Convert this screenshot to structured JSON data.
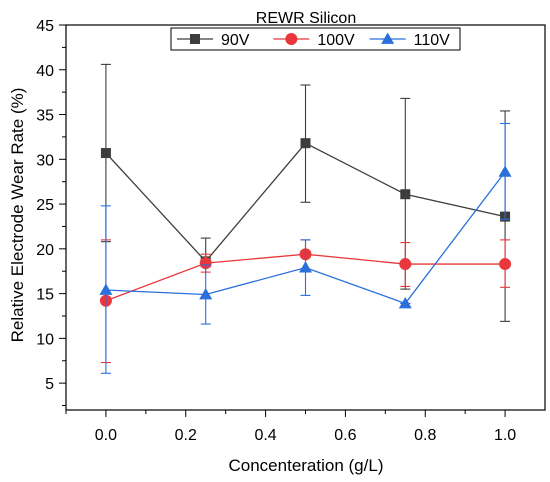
{
  "chart_data": {
    "type": "line",
    "title": "",
    "xlabel": "Concenteration (g/L)",
    "ylabel": "Relative Electrode Wear Rate (%)",
    "xlim": [
      -0.1,
      1.1
    ],
    "ylim": [
      2,
      45
    ],
    "xticks": [
      "0.0",
      "0.2",
      "0.4",
      "0.6",
      "0.8",
      "1.0"
    ],
    "yticks": [
      "5",
      "10",
      "15",
      "20",
      "25",
      "30",
      "35",
      "40",
      "45"
    ],
    "legend": {
      "title": "REWR Silicon",
      "position": "top-center",
      "columns": 3
    },
    "x": [
      0.0,
      0.25,
      0.5,
      0.75,
      1.0
    ],
    "series": [
      {
        "name": "90V",
        "color": "#3d3d3d",
        "marker": "square",
        "values": [
          30.7,
          18.6,
          31.8,
          26.1,
          23.6
        ],
        "err_low": [
          20.8,
          18.0,
          25.2,
          15.5,
          11.9
        ],
        "err_high": [
          40.6,
          21.2,
          38.3,
          36.8,
          35.4
        ]
      },
      {
        "name": "100V",
        "color": "#e8383d",
        "marker": "circle",
        "values": [
          14.2,
          18.4,
          19.4,
          18.3,
          18.3
        ],
        "err_low": [
          7.3,
          17.4,
          17.7,
          15.8,
          15.7
        ],
        "err_high": [
          21.0,
          19.4,
          21.0,
          20.7,
          21.0
        ]
      },
      {
        "name": "110V",
        "color": "#2a6fdb",
        "marker": "triangle",
        "values": [
          15.4,
          14.9,
          17.9,
          13.9,
          28.6
        ],
        "err_low": [
          6.1,
          11.6,
          14.8,
          13.9,
          23.3
        ],
        "err_high": [
          24.8,
          18.2,
          21.0,
          13.9,
          34.0
        ]
      }
    ]
  }
}
